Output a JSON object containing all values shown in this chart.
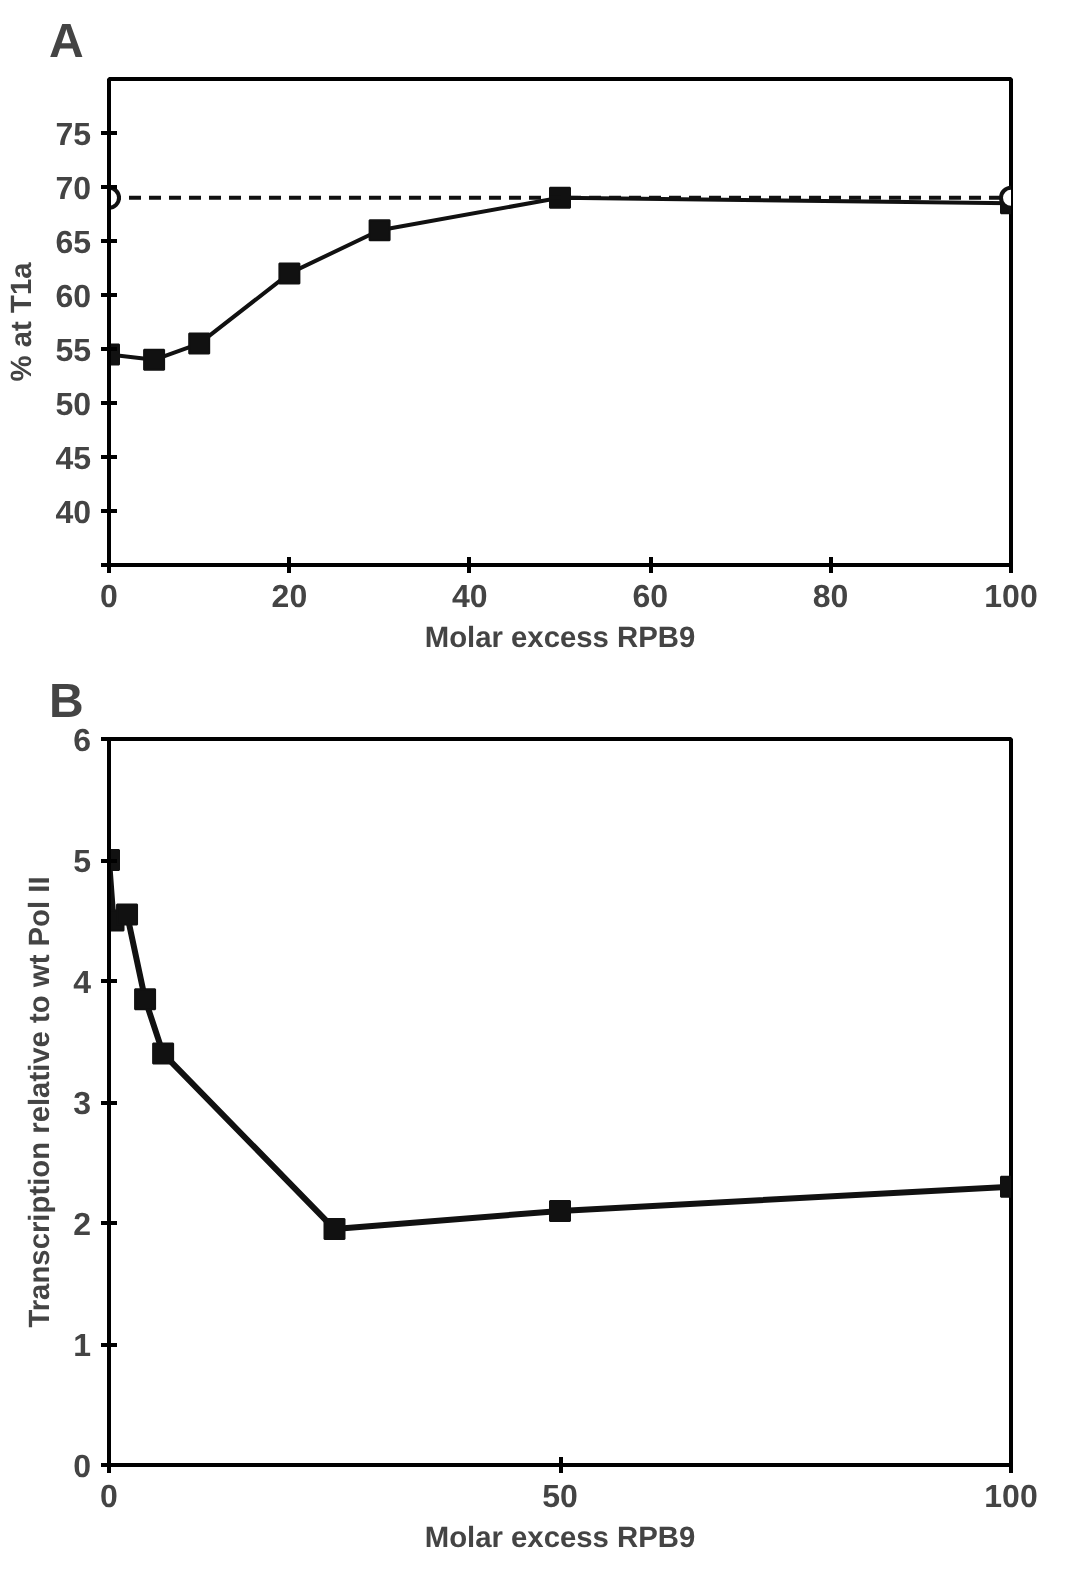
{
  "chart_data": [
    {
      "type": "line",
      "title": "A",
      "xlabel": "Molar excess RPB9",
      "ylabel": "% at T1a",
      "xlim": [
        0,
        100
      ],
      "ylim": [
        35,
        80
      ],
      "xticks": [
        0,
        20,
        40,
        60,
        80,
        100
      ],
      "yticks": [
        {
          "value": 35,
          "label": null
        },
        40,
        45,
        50,
        55,
        60,
        65,
        70,
        75
      ],
      "grid": false,
      "series": [
        {
          "color": "#111111",
          "marker": "square",
          "line_style": "solid",
          "x": [
            0,
            5,
            10,
            20,
            30,
            50,
            100
          ],
          "values": [
            54.5,
            54,
            55.5,
            62,
            66,
            69,
            68.5
          ]
        },
        {
          "color": "#111111",
          "marker": "circle",
          "line_style": "dashed",
          "x": [
            0,
            100
          ],
          "values": [
            69,
            69
          ]
        }
      ]
    },
    {
      "type": "line",
      "title": "B",
      "xlabel": "Molar excess RPB9",
      "ylabel": "Transcription relative to wt Pol II",
      "xlim": [
        0,
        100
      ],
      "ylim": [
        0,
        6
      ],
      "xticks": [
        0,
        50,
        100
      ],
      "yticks": [
        0,
        1,
        2,
        3,
        4,
        5,
        6
      ],
      "grid": false,
      "series": [
        {
          "color": "#111111",
          "marker": "square",
          "line_style": "solid",
          "x": [
            0,
            0.5,
            2,
            4,
            6,
            25,
            50,
            100
          ],
          "values": [
            5,
            4.5,
            4.55,
            3.85,
            3.4,
            1.95,
            2.1,
            2.3
          ]
        }
      ]
    }
  ]
}
